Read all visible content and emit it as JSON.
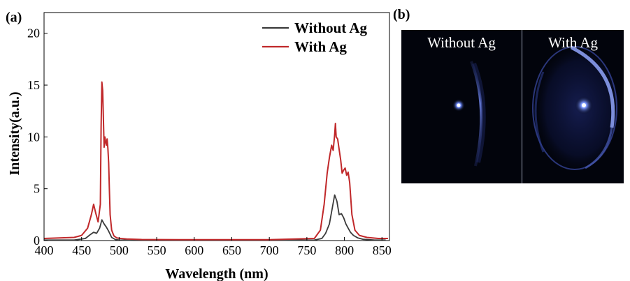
{
  "panel_a_label": "(a)",
  "panel_b_label": "(b)",
  "photo": {
    "left_caption": "Without Ag",
    "right_caption": "With Ag"
  },
  "chart_data": {
    "type": "line",
    "xlabel": "Wavelength (nm)",
    "ylabel": "Intensity(a.u.)",
    "xlim": [
      400,
      860
    ],
    "ylim": [
      0,
      22
    ],
    "xticks": [
      400,
      450,
      500,
      550,
      600,
      650,
      700,
      750,
      800,
      850
    ],
    "yticks": [
      0,
      5,
      10,
      15,
      20
    ],
    "legend_position": "top-right",
    "grid": false,
    "series": [
      {
        "name": "Without Ag",
        "color": "#3a3a3a",
        "x": [
          400,
          440,
          455,
          462,
          466,
          470,
          474,
          477,
          480,
          483,
          486,
          490,
          495,
          500,
          520,
          600,
          700,
          760,
          770,
          775,
          780,
          784,
          787,
          790,
          793,
          796,
          799,
          802,
          805,
          808,
          812,
          818,
          825,
          840,
          855
        ],
        "y": [
          0.05,
          0.05,
          0.2,
          0.6,
          0.8,
          0.7,
          1.2,
          2.0,
          1.6,
          1.3,
          0.9,
          0.3,
          0.1,
          0.05,
          0.02,
          0.02,
          0.02,
          0.05,
          0.2,
          0.7,
          1.6,
          3.2,
          4.4,
          3.8,
          2.5,
          2.6,
          2.2,
          1.6,
          1.2,
          0.8,
          0.5,
          0.25,
          0.12,
          0.05,
          0.05
        ]
      },
      {
        "name": "With Ag",
        "color": "#c0282a",
        "x": [
          400,
          440,
          450,
          458,
          463,
          466,
          469,
          472,
          475,
          476,
          477,
          478,
          479,
          480,
          481,
          482,
          483,
          484,
          485,
          486,
          487,
          488,
          490,
          493,
          497,
          502,
          510,
          530,
          600,
          700,
          760,
          768,
          773,
          777,
          780,
          783,
          785,
          787,
          788,
          789,
          791,
          793,
          795,
          797,
          799,
          801,
          803,
          805,
          807,
          810,
          814,
          820,
          830,
          845,
          858
        ],
        "y": [
          0.2,
          0.3,
          0.5,
          1.2,
          2.5,
          3.5,
          2.6,
          1.8,
          3.5,
          11.0,
          15.3,
          14.5,
          12.0,
          9.0,
          10.0,
          9.5,
          9.2,
          9.8,
          8.9,
          7.5,
          5.0,
          2.5,
          1.0,
          0.45,
          0.25,
          0.2,
          0.15,
          0.1,
          0.08,
          0.08,
          0.2,
          1.0,
          3.5,
          6.5,
          8.0,
          9.2,
          8.7,
          10.2,
          11.3,
          10.0,
          9.8,
          8.8,
          7.8,
          6.5,
          6.8,
          7.0,
          6.3,
          6.6,
          5.6,
          2.5,
          1.0,
          0.5,
          0.3,
          0.2,
          0.2
        ]
      }
    ]
  }
}
